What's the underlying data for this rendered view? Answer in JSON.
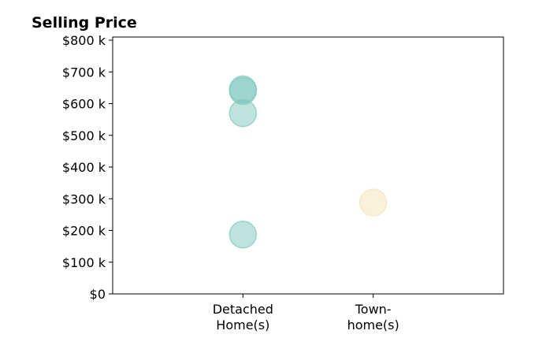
{
  "chart_data": {
    "type": "scatter",
    "title": "Selling Price",
    "xlabel": "",
    "ylabel": "",
    "categories": [
      [
        "Detached",
        "Home(s)"
      ],
      [
        "Town-",
        "home(s)"
      ]
    ],
    "xlim": [
      -1,
      2
    ],
    "ylim": [
      0,
      810000
    ],
    "y_ticks": [
      0,
      100000,
      200000,
      300000,
      400000,
      500000,
      600000,
      700000,
      800000
    ],
    "y_tick_labels": [
      "$0",
      "$100 k",
      "$200 k",
      "$300 k",
      "$400 k",
      "$500 k",
      "$600 k",
      "$700 k",
      "$800 k"
    ],
    "grid": false,
    "series": [
      {
        "category_index": 0,
        "color": "#7ec8bd",
        "values": [
          645000,
          640000,
          570000,
          187000
        ]
      },
      {
        "category_index": 1,
        "color": "#f5e2b8",
        "values": [
          288000
        ]
      }
    ]
  }
}
